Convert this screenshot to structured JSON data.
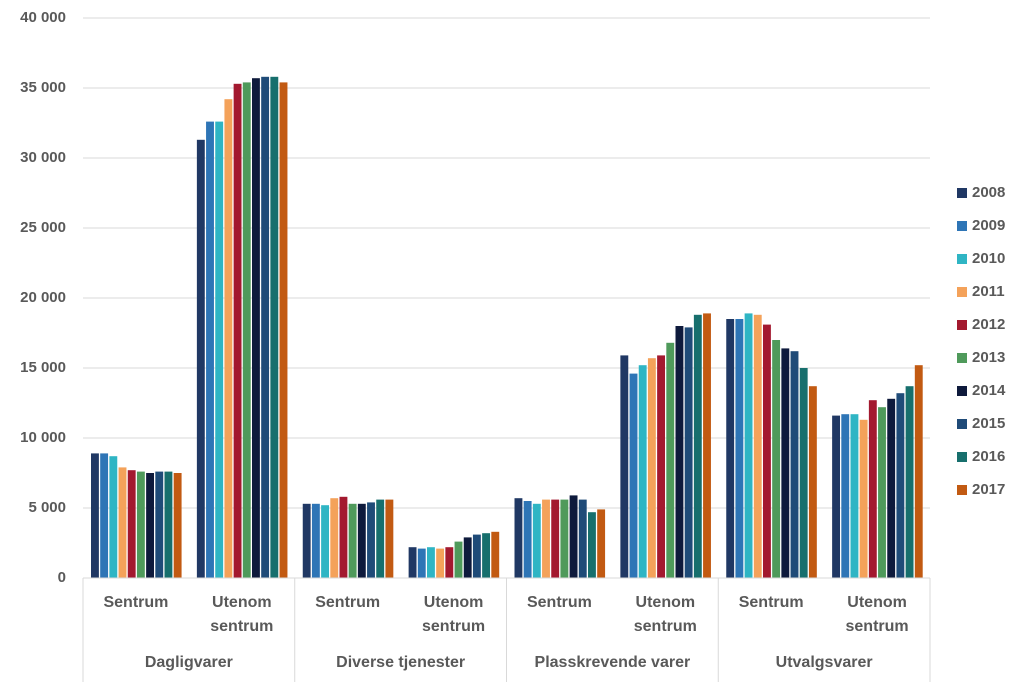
{
  "chart_data": {
    "type": "bar",
    "groups": [
      {
        "name": "Dagligvarer",
        "categories": [
          "Sentrum",
          "Utenom sentrum"
        ]
      },
      {
        "name": "Diverse tjenester",
        "categories": [
          "Sentrum",
          "Utenom sentrum"
        ]
      },
      {
        "name": "Plasskrevende varer",
        "categories": [
          "Sentrum",
          "Utenom sentrum"
        ]
      },
      {
        "name": "Utvalgsvarer",
        "categories": [
          "Sentrum",
          "Utenom sentrum"
        ]
      }
    ],
    "series": [
      {
        "name": "2008",
        "color": "#203864",
        "values": [
          8900,
          31300,
          5300,
          2200,
          5700,
          15900,
          18500,
          11600
        ]
      },
      {
        "name": "2009",
        "color": "#2e75b6",
        "values": [
          8900,
          32600,
          5300,
          2100,
          5500,
          14600,
          18500,
          11700
        ]
      },
      {
        "name": "2010",
        "color": "#2fb5c4",
        "values": [
          8700,
          32600,
          5200,
          2200,
          5300,
          15200,
          18900,
          11700
        ]
      },
      {
        "name": "2011",
        "color": "#f4a25a",
        "values": [
          7900,
          34200,
          5700,
          2100,
          5600,
          15700,
          18800,
          11300
        ]
      },
      {
        "name": "2012",
        "color": "#a3192f",
        "values": [
          7700,
          35300,
          5800,
          2200,
          5600,
          15900,
          18100,
          12700
        ]
      },
      {
        "name": "2013",
        "color": "#4f9a5b",
        "values": [
          7600,
          35400,
          5300,
          2600,
          5600,
          16800,
          17000,
          12200
        ]
      },
      {
        "name": "2014",
        "color": "#0e1a3c",
        "values": [
          7500,
          35700,
          5300,
          2900,
          5900,
          18000,
          16400,
          12800
        ]
      },
      {
        "name": "2015",
        "color": "#1f4b78",
        "values": [
          7600,
          35800,
          5400,
          3100,
          5600,
          17900,
          16200,
          13200
        ]
      },
      {
        "name": "2016",
        "color": "#176f6d",
        "values": [
          7600,
          35800,
          5600,
          3200,
          4700,
          18800,
          15000,
          13700
        ]
      },
      {
        "name": "2017",
        "color": "#c25a12",
        "values": [
          7500,
          35400,
          5600,
          3300,
          4900,
          18900,
          13700,
          15200
        ]
      }
    ],
    "ylim": [
      0,
      40000
    ],
    "yticks": [
      0,
      {
        "value": 5000,
        "label": "5 000"
      },
      {
        "value": 10000,
        "label": "10 000"
      },
      {
        "value": 15000,
        "label": "15 000"
      },
      {
        "value": 20000,
        "label": "20 000"
      },
      {
        "value": 25000,
        "label": "25 000"
      },
      {
        "value": 30000,
        "label": "30 000"
      },
      {
        "value": 35000,
        "label": "35 000"
      },
      {
        "value": 40000,
        "label": "40 000"
      }
    ],
    "grid": true,
    "legend": "right"
  }
}
